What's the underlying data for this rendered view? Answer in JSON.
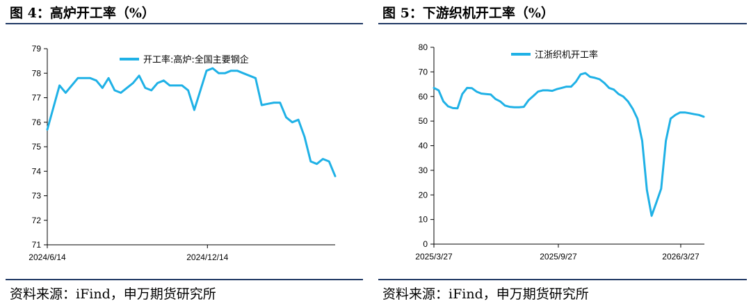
{
  "panels": [
    {
      "figure_title": "图 4：高炉开工率（%）",
      "source": "资料来源：iFind，申万期货研究所"
    },
    {
      "figure_title": "图 5：下游织机开工率（%）",
      "source": "资料来源：iFind，申万期货研究所"
    }
  ],
  "chart_data": [
    {
      "type": "line",
      "title": "",
      "xlabel": "",
      "ylabel": "",
      "ylim": [
        71,
        79
      ],
      "yticks": [
        71,
        72,
        73,
        74,
        75,
        76,
        77,
        78,
        79
      ],
      "xlim": [
        "2024-06-14",
        "2025-05-09"
      ],
      "xtick_labels": [
        "2024/6/14",
        "2024/12/14"
      ],
      "xtick_dates": [
        "2024-06-14",
        "2024-12-14"
      ],
      "grid": false,
      "legend_position": "top",
      "color": "#1fb1e6",
      "series": [
        {
          "name": "开工率:高炉:全国主要钢企",
          "x": [
            "2024-06-14",
            "2024-06-21",
            "2024-06-28",
            "2024-07-05",
            "2024-07-12",
            "2024-07-19",
            "2024-07-26",
            "2024-08-02",
            "2024-08-09",
            "2024-08-16",
            "2024-08-23",
            "2024-08-30",
            "2024-09-06",
            "2024-09-13",
            "2024-09-20",
            "2024-09-27",
            "2024-10-04",
            "2024-10-11",
            "2024-10-18",
            "2024-10-25",
            "2024-11-01",
            "2024-11-08",
            "2024-11-15",
            "2024-11-22",
            "2024-11-29",
            "2024-12-06",
            "2024-12-13",
            "2024-12-20",
            "2024-12-27",
            "2025-01-03",
            "2025-01-10",
            "2025-01-17",
            "2025-01-24",
            "2025-01-31",
            "2025-02-07",
            "2025-02-14",
            "2025-02-21",
            "2025-02-28",
            "2025-03-07",
            "2025-03-14",
            "2025-03-21",
            "2025-03-28",
            "2025-04-04",
            "2025-04-11",
            "2025-04-18",
            "2025-04-25",
            "2025-05-02",
            "2025-05-09"
          ],
          "values": [
            75.7,
            76.6,
            77.5,
            77.2,
            77.5,
            77.8,
            77.8,
            77.8,
            77.7,
            77.4,
            77.8,
            77.3,
            77.2,
            77.4,
            77.6,
            77.9,
            77.4,
            77.3,
            77.6,
            77.7,
            77.5,
            77.5,
            77.5,
            77.3,
            76.5,
            77.3,
            78.1,
            78.2,
            78.0,
            78.0,
            78.1,
            78.1,
            78.0,
            77.9,
            77.8,
            76.7,
            76.75,
            76.8,
            76.8,
            76.2,
            76.0,
            76.1,
            75.4,
            74.4,
            74.3,
            74.5,
            74.4,
            73.8
          ]
        }
      ]
    },
    {
      "type": "line",
      "title": "",
      "xlabel": "",
      "ylabel": "",
      "ylim": [
        0,
        80
      ],
      "yticks": [
        0,
        10,
        20,
        30,
        40,
        50,
        60,
        70,
        80
      ],
      "xlim": [
        "2025-03-27",
        "2026-05-01"
      ],
      "xtick_labels": [
        "2025/3/27",
        "2025/9/27",
        "2026/3/27"
      ],
      "xtick_dates": [
        "2025-03-27",
        "2025-09-27",
        "2026-03-27"
      ],
      "grid": false,
      "legend_position": "top",
      "color": "#1fb1e6",
      "series": [
        {
          "name": "江浙织机开工率",
          "x": [
            "2025-03-27",
            "2025-04-03",
            "2025-04-10",
            "2025-04-17",
            "2025-04-24",
            "2025-05-01",
            "2025-05-08",
            "2025-05-15",
            "2025-05-22",
            "2025-05-29",
            "2025-06-05",
            "2025-06-12",
            "2025-06-19",
            "2025-06-26",
            "2025-07-03",
            "2025-07-10",
            "2025-07-17",
            "2025-07-24",
            "2025-07-31",
            "2025-08-07",
            "2025-08-14",
            "2025-08-21",
            "2025-08-28",
            "2025-09-04",
            "2025-09-11",
            "2025-09-18",
            "2025-09-25",
            "2025-10-02",
            "2025-10-09",
            "2025-10-16",
            "2025-10-23",
            "2025-10-30",
            "2025-11-06",
            "2025-11-13",
            "2025-11-20",
            "2025-11-27",
            "2025-12-04",
            "2025-12-11",
            "2025-12-18",
            "2025-12-25",
            "2026-01-01",
            "2026-01-08",
            "2026-01-15",
            "2026-01-22",
            "2026-01-29",
            "2026-02-05",
            "2026-02-12",
            "2026-02-19",
            "2026-02-26",
            "2026-03-05",
            "2026-03-12",
            "2026-03-19",
            "2026-03-26",
            "2026-04-02",
            "2026-04-09",
            "2026-04-16",
            "2026-04-23",
            "2026-04-30"
          ],
          "values": [
            63.5,
            62.5,
            58,
            56,
            55.3,
            55.2,
            61,
            63.5,
            63.4,
            62,
            61.2,
            61,
            60.8,
            59,
            58,
            56.3,
            55.8,
            55.6,
            55.6,
            55.8,
            58.5,
            60.2,
            62,
            62.5,
            62.5,
            62.3,
            63,
            63.5,
            64,
            64,
            66,
            69,
            69.5,
            68,
            67.6,
            67,
            65.5,
            63.5,
            62.8,
            61,
            60,
            58,
            55,
            51,
            42,
            22,
            11.5,
            17,
            22.5,
            42,
            51,
            52.5,
            53.5,
            53.5,
            53.2,
            52.8,
            52.5,
            51.8
          ]
        }
      ]
    }
  ]
}
